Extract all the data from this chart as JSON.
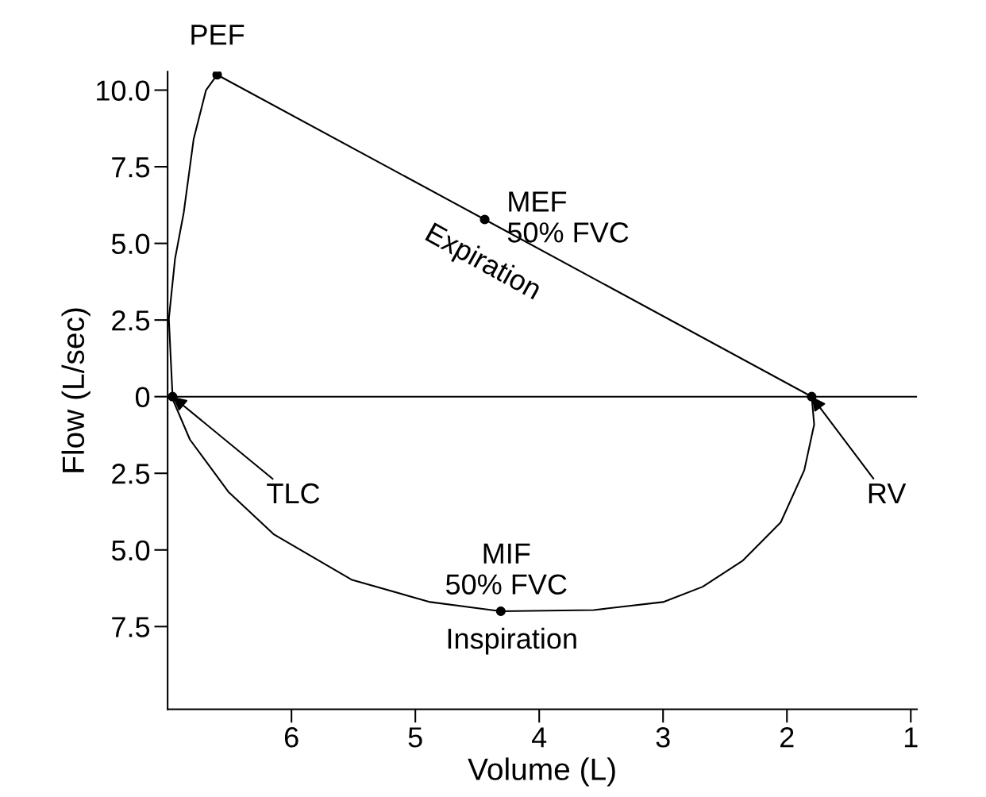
{
  "chart_data": {
    "type": "line",
    "xlabel": "Volume (L)",
    "ylabel": "Flow (L/sec)",
    "xlim": [
      7,
      0.95
    ],
    "xticks": [
      6,
      5,
      4,
      3,
      2,
      1
    ],
    "ylim": [
      -10.2,
      10.6
    ],
    "yticks": [
      {
        "value": -7.5,
        "label": "7.5"
      },
      {
        "value": -5,
        "label": "5.0"
      },
      {
        "value": -2.5,
        "label": "2.5"
      },
      0,
      {
        "value": 2.5,
        "label": "2.5"
      },
      {
        "value": 5,
        "label": "5.0"
      },
      {
        "value": 7.5,
        "label": "7.5"
      },
      {
        "value": 10,
        "label": "10.0"
      }
    ],
    "grid": false,
    "legend": false,
    "series": [
      {
        "color": "#000000",
        "marker": "none",
        "x": [
          6.96,
          6.99,
          6.94,
          6.87,
          6.79,
          6.69,
          6.6,
          4.44,
          1.8
        ],
        "values": [
          0,
          2.54,
          4.5,
          6.0,
          8.4,
          10.0,
          10.5,
          5.78,
          0
        ]
      },
      {
        "color": "#000000",
        "marker": "none",
        "x": [
          1.8,
          1.78,
          1.86,
          2.05,
          2.36,
          2.68,
          3.0,
          3.56,
          4.31,
          4.88,
          5.51,
          6.14,
          6.51,
          6.82,
          6.95,
          6.96
        ],
        "values": [
          0,
          -0.91,
          -2.4,
          -4.1,
          -5.36,
          -6.2,
          -6.7,
          -6.96,
          -7.0,
          -6.7,
          -5.98,
          -4.5,
          -3.1,
          -1.4,
          -0.17,
          0
        ]
      },
      {
        "type": "scatter",
        "color": "#000000",
        "marker": "circle",
        "x": [
          6.6,
          4.44,
          6.96,
          1.8,
          4.31
        ],
        "values": [
          10.5,
          5.78,
          0,
          0,
          -7.0
        ]
      }
    ],
    "ref_lines": [
      {
        "axis": "y",
        "value": 0,
        "color": "#000000"
      }
    ],
    "annotations": [
      {
        "text": "PEF",
        "x": 6.6,
        "y": 10.5
      },
      {
        "text": "MEF\n50% FVC",
        "x": 4.44,
        "y": 5.78
      },
      "Expiration",
      {
        "text": "TLC",
        "x": 6.96,
        "y": 0
      },
      {
        "text": "RV",
        "x": 1.8,
        "y": 0
      },
      {
        "text": "MIF\n50% FVC",
        "x": 4.31,
        "y": -7.0
      },
      {
        "text": "Inspiration",
        "x": 4.31,
        "y": -7.0
      }
    ]
  }
}
